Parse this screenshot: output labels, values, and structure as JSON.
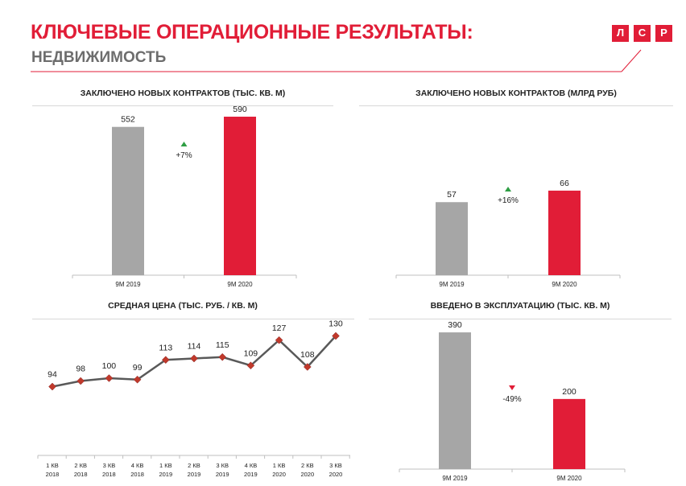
{
  "header": {
    "title": "КЛЮЧЕВЫЕ ОПЕРАЦИОННЫЕ РЕЗУЛЬТАТЫ:",
    "subtitle": "НЕДВИЖИМОСТЬ",
    "logo_letters": [
      "Л",
      "С",
      "Р"
    ]
  },
  "colors": {
    "brand_red": "#e11d37",
    "bar_gray": "#a6a6a6",
    "line": "#595959",
    "marker": "#c0392b",
    "up": "#2e9e44",
    "down": "#e11d37"
  },
  "chart_data": [
    {
      "type": "bar",
      "title": "ЗАКЛЮЧЕНО НОВЫХ КОНТРАКТОВ  (ТЫС. КВ. М)",
      "categories": [
        "9М 2019",
        "9М 2020"
      ],
      "values": [
        552,
        590
      ],
      "colors": [
        "#a6a6a6",
        "#e11d37"
      ],
      "change": {
        "label": "+7%",
        "direction": "up"
      },
      "ylim": [
        0,
        620
      ]
    },
    {
      "type": "bar",
      "title": "ЗАКЛЮЧЕНО НОВЫХ КОНТРАКТОВ  (МЛРД РУБ)",
      "categories": [
        "9М 2019",
        "9М 2020"
      ],
      "values": [
        57,
        66
      ],
      "colors": [
        "#a6a6a6",
        "#e11d37"
      ],
      "change": {
        "label": "+16%",
        "direction": "up"
      },
      "ylim": [
        0,
        130
      ]
    },
    {
      "type": "line",
      "title": "СРЕДНАЯ ЦЕНА (ТЫС. РУБ. / КВ. М)",
      "categories": [
        [
          "1 КВ",
          "2018"
        ],
        [
          "2 КВ",
          "2018"
        ],
        [
          "3 КВ",
          "2018"
        ],
        [
          "4 КВ",
          "2018"
        ],
        [
          "1 КВ",
          "2019"
        ],
        [
          "2 КВ",
          "2019"
        ],
        [
          "3 КВ",
          "2019"
        ],
        [
          "4 КВ",
          "2019"
        ],
        [
          "1 КВ",
          "2020"
        ],
        [
          "2 КВ",
          "2020"
        ],
        [
          "3 КВ",
          "2020"
        ]
      ],
      "values": [
        94,
        98,
        100,
        99,
        113,
        114,
        115,
        109,
        127,
        108,
        130
      ],
      "ylim": [
        60,
        140
      ]
    },
    {
      "type": "bar",
      "title": "ВВЕДЕНО В ЭКСПЛУАТАЦИЮ  (ТЫС. КВ. М)",
      "categories": [
        "9М 2019",
        "9М 2020"
      ],
      "values": [
        390,
        200
      ],
      "colors": [
        "#a6a6a6",
        "#e11d37"
      ],
      "change": {
        "label": "-49%",
        "direction": "down"
      },
      "ylim": [
        0,
        420
      ]
    }
  ]
}
